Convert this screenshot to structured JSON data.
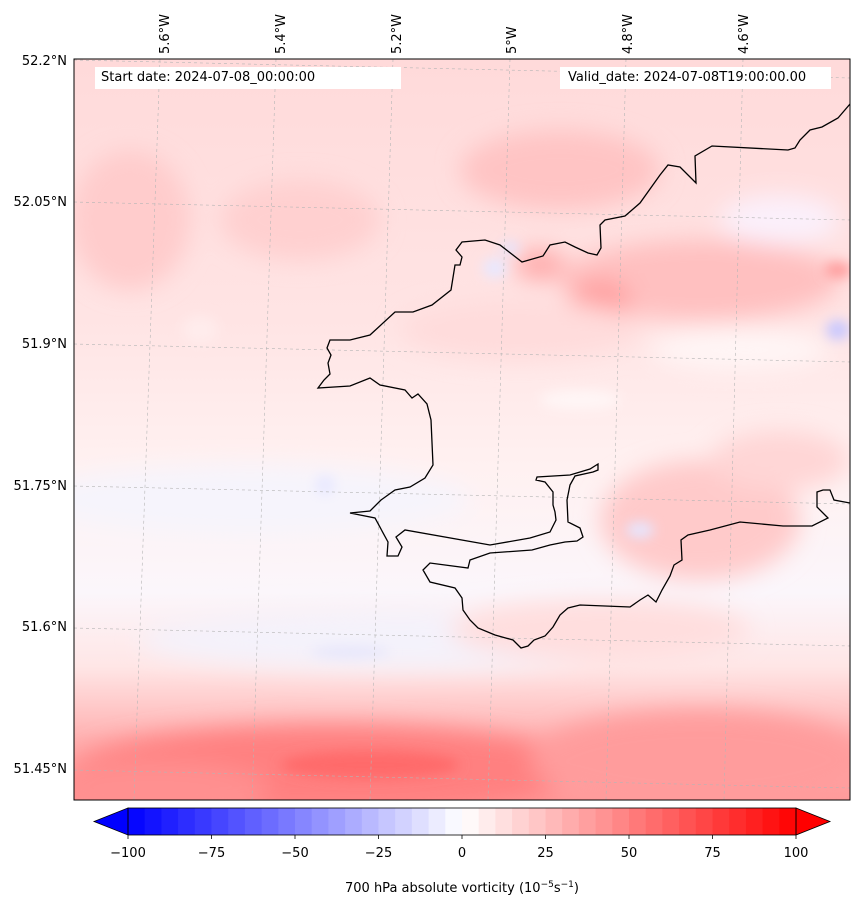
{
  "map": {
    "start_date_label": "Start date: 2024-07-08_00:00:00",
    "valid_date_label": "Valid_date: 2024-07-08T19:00:00.00",
    "lon_labels": [
      "5.6°W",
      "5.4°W",
      "5.2°W",
      "5°W",
      "4.8°W",
      "4.6°W"
    ],
    "lat_labels": [
      "52.2°N",
      "52.05°N",
      "51.9°N",
      "51.75°N",
      "51.6°N",
      "51.45°N"
    ],
    "field_description": "Absolute vorticity field at 700 hPa, mostly weakly positive with a stronger positive band along the southern edge"
  },
  "colorbar": {
    "ticks": [
      "−100",
      "−75",
      "−50",
      "−25",
      "0",
      "25",
      "50",
      "75",
      "100"
    ],
    "label_main": "700 hPa absolute vorticity (10",
    "label_exp1": "−5",
    "label_mid": "s",
    "label_exp2": "−1",
    "label_end": ")",
    "min": -100,
    "max": 100,
    "levels": 41,
    "low_color": "#0000ff",
    "mid_color": "#ffffff",
    "high_color": "#ff0000"
  }
}
